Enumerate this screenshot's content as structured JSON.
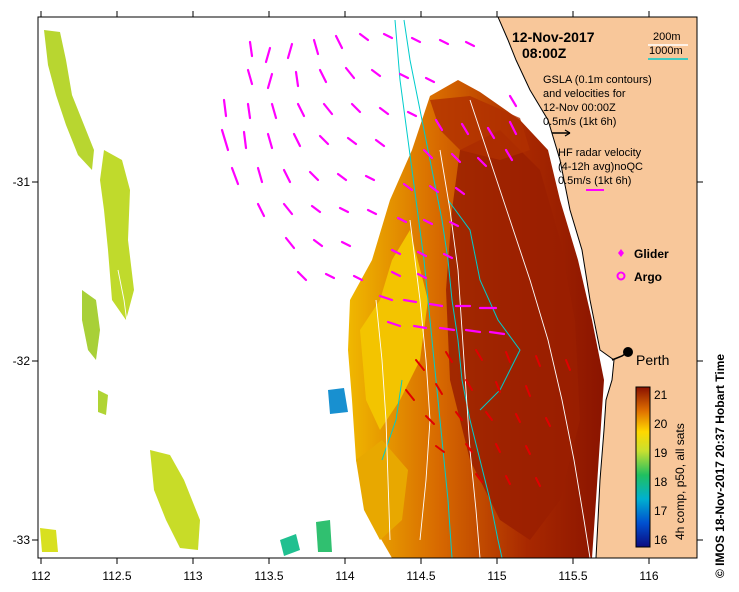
{
  "map": {
    "date": "12-Nov-2017",
    "time": "08:00Z",
    "legend": {
      "contour_200m": "200m",
      "contour_1000m": "1000m",
      "gsla_lines": [
        "GSLA (0.1m contours)",
        "and velocities for",
        "12-Nov 00:00Z",
        "0.5m/s (1kt 6h)"
      ],
      "hf_lines": [
        "HF radar velocity",
        "(4-12h avg)noQC",
        "0.5m/s (1kt 6h)"
      ],
      "glider": "Glider",
      "argo": "Argo"
    },
    "city": "Perth",
    "colorbar": {
      "label": "4h comp, p50, all sats",
      "ticks": [
        "21",
        "20",
        "19",
        "18",
        "17",
        "16"
      ]
    },
    "credit": "© IMOS 18-Nov-2017 20:37 Hobart Time",
    "x_ticks": [
      "112",
      "112.5",
      "113",
      "113.5",
      "114",
      "114.5",
      "115",
      "115.5",
      "116"
    ],
    "y_ticks": [
      "-31",
      "-32",
      "-33"
    ],
    "colors": {
      "land": "#f8c79a",
      "hf_arrow": "#ff00ff",
      "gsla_arrow": "#e00000",
      "bathymetry": "#00cccc"
    }
  }
}
